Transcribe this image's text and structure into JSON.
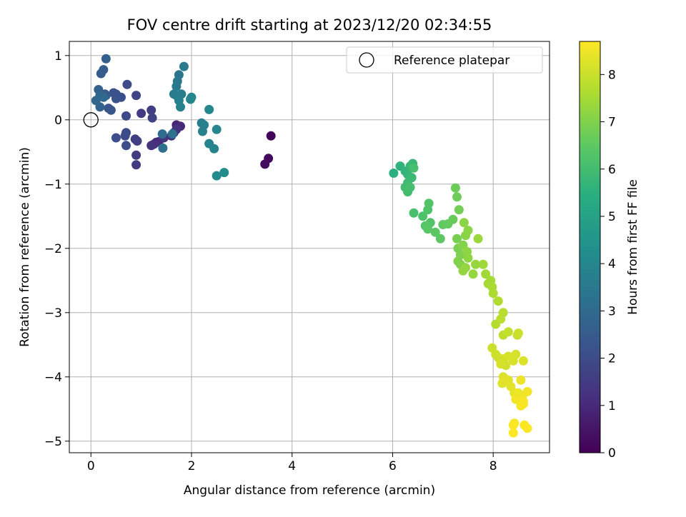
{
  "chart_data": {
    "type": "scatter",
    "title": "FOV centre drift starting at 2023/12/20 02:34:55",
    "xlabel": "Angular distance from reference (arcmin)",
    "ylabel": "Rotation from reference (arcmin)",
    "xlim": [
      -0.43,
      9.12
    ],
    "ylim": [
      -5.18,
      1.22
    ],
    "xticks": [
      0,
      2,
      4,
      6,
      8
    ],
    "yticks": [
      1,
      0,
      -1,
      -2,
      -3,
      -4,
      -5
    ],
    "xtick_labels": [
      "0",
      "2",
      "4",
      "6",
      "8"
    ],
    "ytick_labels": [
      "1",
      "0",
      "−1",
      "−2",
      "−3",
      "−4",
      "−5"
    ],
    "grid": true,
    "legend": {
      "placement": "top-right",
      "entries": [
        "Reference platepar"
      ]
    },
    "reference_point": {
      "x": 0,
      "y": 0,
      "marker": "open-circle"
    },
    "colorbar": {
      "label": "Hours from first FF file",
      "colormap": "viridis",
      "range": [
        0,
        8.7
      ],
      "ticks": [
        0,
        1,
        2,
        3,
        4,
        5,
        6,
        7,
        8
      ],
      "tick_labels": [
        "0",
        "1",
        "2",
        "3",
        "4",
        "5",
        "6",
        "7",
        "8"
      ]
    },
    "points": [
      [
        3.58,
        -0.25,
        0.1
      ],
      [
        3.53,
        -0.6,
        0.2
      ],
      [
        3.46,
        -0.69,
        0.3
      ],
      [
        1.7,
        -0.08,
        0.9
      ],
      [
        1.78,
        -0.1,
        1.0
      ],
      [
        1.65,
        -0.2,
        1.1
      ],
      [
        1.6,
        -0.25,
        1.2
      ],
      [
        1.7,
        -0.15,
        1.3
      ],
      [
        1.3,
        -0.35,
        1.0
      ],
      [
        1.35,
        -0.34,
        1.05
      ],
      [
        1.25,
        -0.38,
        1.15
      ],
      [
        1.2,
        -0.4,
        1.25
      ],
      [
        1.45,
        -0.28,
        1.3
      ],
      [
        0.9,
        -0.55,
        1.5
      ],
      [
        0.9,
        -0.7,
        1.55
      ],
      [
        0.88,
        -0.3,
        1.6
      ],
      [
        0.92,
        -0.33,
        1.65
      ],
      [
        1.0,
        0.1,
        1.5
      ],
      [
        1.2,
        0.15,
        1.6
      ],
      [
        1.22,
        0.03,
        1.7
      ],
      [
        0.9,
        0.38,
        1.8
      ],
      [
        0.7,
        0.06,
        1.9
      ],
      [
        0.7,
        -0.2,
        1.95
      ],
      [
        0.68,
        -0.25,
        2.0
      ],
      [
        0.7,
        -0.4,
        2.05
      ],
      [
        0.5,
        -0.28,
        2.1
      ],
      [
        0.72,
        0.55,
        2.0
      ],
      [
        0.6,
        0.35,
        2.1
      ],
      [
        0.5,
        0.4,
        2.15
      ],
      [
        0.45,
        0.42,
        2.2
      ],
      [
        0.5,
        0.33,
        2.25
      ],
      [
        0.4,
        0.15,
        2.3
      ],
      [
        0.35,
        0.18,
        2.35
      ],
      [
        0.3,
        0.38,
        2.4
      ],
      [
        0.28,
        0.4,
        2.45
      ],
      [
        0.2,
        0.72,
        2.5
      ],
      [
        0.25,
        0.78,
        2.55
      ],
      [
        0.3,
        0.95,
        2.6
      ],
      [
        0.15,
        0.47,
        2.7
      ],
      [
        0.18,
        0.2,
        2.8
      ],
      [
        0.1,
        0.3,
        2.85
      ],
      [
        0.18,
        0.38,
        2.9
      ],
      [
        0.25,
        0.35,
        2.95
      ],
      [
        1.42,
        -0.22,
        3.1
      ],
      [
        1.43,
        -0.44,
        3.2
      ],
      [
        1.62,
        -0.22,
        3.3
      ],
      [
        1.75,
        0.7,
        3.4
      ],
      [
        1.72,
        0.6,
        3.45
      ],
      [
        1.85,
        0.83,
        3.5
      ],
      [
        1.7,
        0.52,
        3.55
      ],
      [
        1.65,
        0.4,
        3.6
      ],
      [
        1.7,
        0.38,
        3.65
      ],
      [
        1.8,
        0.4,
        3.7
      ],
      [
        1.75,
        0.3,
        3.75
      ],
      [
        1.78,
        0.2,
        3.8
      ],
      [
        1.98,
        0.32,
        3.9
      ],
      [
        2.0,
        0.35,
        3.95
      ],
      [
        2.2,
        -0.05,
        3.7
      ],
      [
        2.25,
        -0.08,
        3.75
      ],
      [
        2.22,
        -0.18,
        3.8
      ],
      [
        2.35,
        -0.37,
        3.85
      ],
      [
        2.45,
        -0.45,
        3.9
      ],
      [
        2.35,
        0.16,
        3.95
      ],
      [
        2.5,
        -0.15,
        4.0
      ],
      [
        2.5,
        -0.87,
        4.1
      ],
      [
        2.65,
        -0.82,
        4.2
      ],
      [
        6.02,
        -0.83,
        5.5
      ],
      [
        6.15,
        -0.72,
        5.6
      ],
      [
        6.25,
        -0.8,
        5.65
      ],
      [
        6.3,
        -0.85,
        5.7
      ],
      [
        6.35,
        -0.72,
        5.75
      ],
      [
        6.4,
        -0.68,
        5.8
      ],
      [
        6.38,
        -0.9,
        5.85
      ],
      [
        6.3,
        -0.98,
        5.9
      ],
      [
        6.25,
        -1.05,
        5.95
      ],
      [
        6.3,
        -1.12,
        6.0
      ],
      [
        6.35,
        -1.05,
        6.05
      ],
      [
        6.42,
        -0.75,
        6.1
      ],
      [
        6.42,
        -1.45,
        6.15
      ],
      [
        6.6,
        -1.5,
        6.2
      ],
      [
        6.7,
        -1.4,
        6.25
      ],
      [
        6.72,
        -1.3,
        6.3
      ],
      [
        6.75,
        -1.6,
        6.3
      ],
      [
        6.65,
        -1.65,
        6.35
      ],
      [
        6.7,
        -1.7,
        6.4
      ],
      [
        6.85,
        -1.75,
        6.45
      ],
      [
        6.95,
        -1.85,
        6.5
      ],
      [
        7.0,
        -1.63,
        6.55
      ],
      [
        7.1,
        -1.62,
        6.6
      ],
      [
        7.2,
        -1.55,
        6.65
      ],
      [
        7.25,
        -1.06,
        6.7
      ],
      [
        7.28,
        -1.2,
        6.75
      ],
      [
        7.32,
        -1.4,
        6.8
      ],
      [
        7.28,
        -1.85,
        6.85
      ],
      [
        7.3,
        -2.0,
        6.9
      ],
      [
        7.35,
        -2.1,
        6.95
      ],
      [
        7.3,
        -2.2,
        7.0
      ],
      [
        7.35,
        -2.25,
        7.0
      ],
      [
        7.4,
        -1.95,
        7.05
      ],
      [
        7.45,
        -1.8,
        7.1
      ],
      [
        7.42,
        -1.6,
        7.15
      ],
      [
        7.5,
        -1.72,
        7.15
      ],
      [
        7.48,
        -2.05,
        7.2
      ],
      [
        7.5,
        -2.15,
        7.2
      ],
      [
        7.45,
        -2.3,
        7.25
      ],
      [
        7.4,
        -2.35,
        7.25
      ],
      [
        7.6,
        -2.4,
        7.3
      ],
      [
        7.65,
        -2.25,
        7.3
      ],
      [
        7.7,
        -1.85,
        7.35
      ],
      [
        7.8,
        -2.25,
        7.4
      ],
      [
        7.85,
        -2.4,
        7.45
      ],
      [
        7.9,
        -2.55,
        7.5
      ],
      [
        7.95,
        -2.5,
        7.5
      ],
      [
        7.98,
        -2.6,
        7.55
      ],
      [
        8.0,
        -2.7,
        7.6
      ],
      [
        8.1,
        -2.82,
        7.65
      ],
      [
        8.05,
        -3.18,
        7.7
      ],
      [
        8.2,
        -3.0,
        7.75
      ],
      [
        8.15,
        -3.1,
        7.8
      ],
      [
        8.2,
        -3.35,
        7.85
      ],
      [
        8.3,
        -3.3,
        7.9
      ],
      [
        8.48,
        -3.35,
        7.95
      ],
      [
        8.5,
        -3.32,
        8.0
      ],
      [
        7.98,
        -3.55,
        8.0
      ],
      [
        8.05,
        -3.65,
        8.05
      ],
      [
        8.1,
        -3.7,
        8.05
      ],
      [
        8.2,
        -3.72,
        8.1
      ],
      [
        8.25,
        -3.82,
        8.1
      ],
      [
        8.15,
        -3.8,
        8.15
      ],
      [
        8.3,
        -3.68,
        8.15
      ],
      [
        8.4,
        -3.75,
        8.2
      ],
      [
        8.45,
        -3.65,
        8.2
      ],
      [
        8.6,
        -3.75,
        8.25
      ],
      [
        8.2,
        -4.0,
        8.25
      ],
      [
        8.3,
        -4.05,
        8.3
      ],
      [
        8.18,
        -4.1,
        8.3
      ],
      [
        8.35,
        -4.15,
        8.35
      ],
      [
        8.42,
        -4.25,
        8.4
      ],
      [
        8.55,
        -4.05,
        8.45
      ],
      [
        8.5,
        -4.25,
        8.5
      ],
      [
        8.58,
        -4.3,
        8.5
      ],
      [
        8.68,
        -4.23,
        8.55
      ],
      [
        8.45,
        -4.35,
        8.55
      ],
      [
        8.6,
        -4.38,
        8.6
      ],
      [
        8.55,
        -4.45,
        8.6
      ],
      [
        8.6,
        -4.42,
        8.65
      ],
      [
        8.42,
        -4.72,
        8.65
      ],
      [
        8.4,
        -4.75,
        8.7
      ],
      [
        8.4,
        -4.87,
        8.7
      ],
      [
        8.62,
        -4.75,
        8.7
      ],
      [
        8.68,
        -4.8,
        8.7
      ]
    ]
  }
}
